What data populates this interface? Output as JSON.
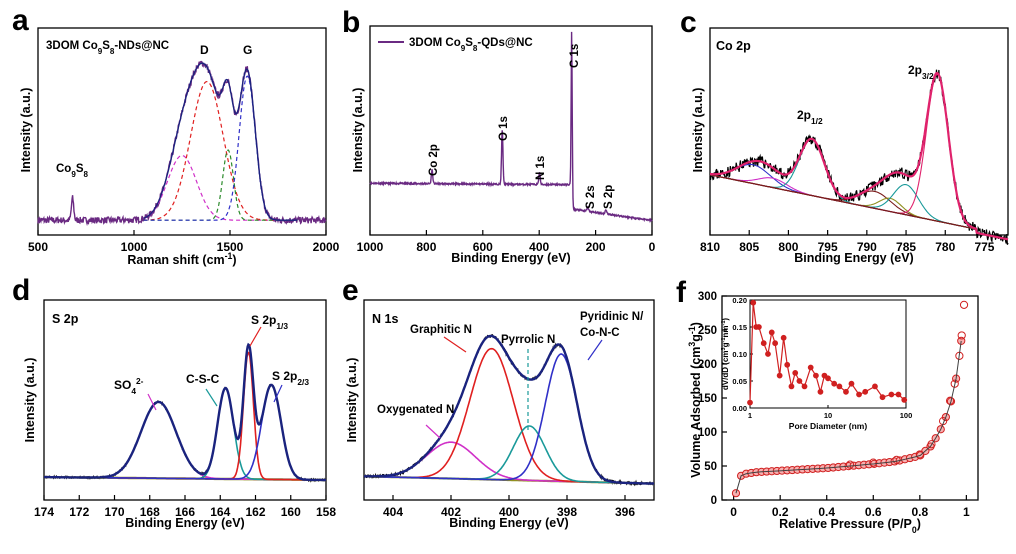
{
  "panels": {
    "a": {
      "letter": "a",
      "legend": "3DOM Co9S8-NDs@NC"
    },
    "b": {
      "letter": "b",
      "legend": "3DOM Co9S8-QDs@NC"
    },
    "c": {
      "letter": "c"
    },
    "d": {
      "letter": "d"
    },
    "e": {
      "letter": "e"
    },
    "f": {
      "letter": "f"
    }
  },
  "colors": {
    "data": "#6a2a82",
    "fit": "#1a237e",
    "envelope": "#e0226c",
    "red": "#e02020",
    "magenta": "#d030c8",
    "teal": "#1a9a9a",
    "green": "#2a8a2a",
    "blue": "#3030c8",
    "baseline": "#8a8a10",
    "brown": "#7a1a1a",
    "olive": "#909020",
    "iso": "#d02020"
  },
  "chart_data": [
    {
      "id": "a",
      "type": "line",
      "title": "3DOM Co9S8-NDs@NC",
      "xlabel": "Raman shift (cm-1)",
      "ylabel": "Intensity (a.u.)",
      "xlim": [
        500,
        2000
      ],
      "xticks": [
        500,
        1000,
        1500,
        2000
      ],
      "annotations": [
        "Co9S8",
        "D",
        "G"
      ],
      "series": [
        {
          "name": "3DOM Co9S8-NDs@NC",
          "x": [
            1000,
            1100,
            1200,
            1300,
            1350,
            1380,
            1400,
            1450,
            1500,
            1550,
            1580,
            1600,
            1650,
            1700,
            1800,
            1900,
            2000
          ],
          "y": [
            0.05,
            0.12,
            0.35,
            0.72,
            0.88,
            0.95,
            0.9,
            0.72,
            0.68,
            0.88,
            0.98,
            0.95,
            0.6,
            0.25,
            0.06,
            0.03,
            0.02
          ]
        }
      ]
    },
    {
      "id": "b",
      "type": "line",
      "title": "3DOM Co9S8-QDs@NC",
      "xlabel": "Binding Energy (eV)",
      "ylabel": "Intensity (a.u.)",
      "xlim": [
        1000,
        0
      ],
      "xticks": [
        1000,
        800,
        600,
        400,
        200,
        0
      ],
      "annotations": [
        "Co 2p",
        "O 1s",
        "N 1s",
        "C 1s",
        "S 2s",
        "S 2p"
      ],
      "series": [
        {
          "name": "3DOM Co9S8-QDs@NC",
          "peaks": [
            {
              "x": 780,
              "label": "Co 2p"
            },
            {
              "x": 531,
              "label": "O 1s"
            },
            {
              "x": 399,
              "label": "N 1s"
            },
            {
              "x": 284.6,
              "label": "C 1s"
            },
            {
              "x": 228,
              "label": "S 2s"
            },
            {
              "x": 163,
              "label": "S 2p"
            }
          ]
        }
      ]
    },
    {
      "id": "c",
      "type": "line",
      "title": "Co 2p",
      "xlabel": "Binding Energy (eV)",
      "ylabel": "Intensity (a.u.)",
      "xlim": [
        810,
        772
      ],
      "xticks": [
        810,
        805,
        800,
        795,
        790,
        785,
        780,
        775
      ],
      "annotations": [
        "2p1/2",
        "2p3/2"
      ],
      "series": [
        {
          "name": "2p3/2 main",
          "center": 781
        },
        {
          "name": "2p3/2 sat",
          "center": 785.5
        },
        {
          "name": "2p1/2 main",
          "center": 797
        },
        {
          "name": "satellites",
          "centers": [
            788,
            803
          ]
        }
      ]
    },
    {
      "id": "d",
      "type": "line",
      "title": "S 2p",
      "xlabel": "Binding Energy (eV)",
      "ylabel": "Intensity (a.u.)",
      "xlim": [
        174,
        158
      ],
      "xticks": [
        174,
        172,
        170,
        168,
        166,
        164,
        162,
        160,
        158
      ],
      "annotations": [
        "SO4 2-",
        "C-S-C",
        "S 2p1/3",
        "S 2p2/3"
      ],
      "series": [
        {
          "name": "SO4 2-",
          "center": 167.5
        },
        {
          "name": "C-S-C",
          "center": 163.7
        },
        {
          "name": "S 2p1/3",
          "center": 162.4
        },
        {
          "name": "S 2p2/3",
          "center": 161.1
        }
      ]
    },
    {
      "id": "e",
      "type": "line",
      "title": "N 1s",
      "xlabel": "Binding Energy (eV)",
      "ylabel": "Intensity (a.u.)",
      "xlim": [
        405,
        395
      ],
      "xticks": [
        404,
        402,
        400,
        398,
        396
      ],
      "annotations": [
        "Oxygenated N",
        "Graphitic N",
        "Pyrrolic N",
        "Pyridinic N/ Co-N-C"
      ],
      "series": [
        {
          "name": "Oxygenated N",
          "center": 402.0
        },
        {
          "name": "Graphitic N",
          "center": 400.6
        },
        {
          "name": "Pyrrolic N",
          "center": 399.3
        },
        {
          "name": "Pyridinic N/ Co-N-C",
          "center": 398.2
        }
      ]
    },
    {
      "id": "f",
      "type": "scatter",
      "xlabel": "Relative Pressure (P/P0)",
      "ylabel": "Volume Adsorbed (cm3g-1)",
      "xlim": [
        -0.05,
        1.05
      ],
      "xticks": [
        0.0,
        0.2,
        0.4,
        0.6,
        0.8,
        1.0
      ],
      "ylim": [
        0,
        300
      ],
      "yticks": [
        0,
        50,
        100,
        150,
        200,
        250,
        300
      ],
      "series": [
        {
          "name": "isotherm",
          "x": [
            0.01,
            0.02,
            0.04,
            0.06,
            0.08,
            0.1,
            0.15,
            0.2,
            0.25,
            0.3,
            0.4,
            0.5,
            0.6,
            0.7,
            0.8,
            0.85,
            0.9,
            0.93,
            0.95,
            0.97,
            0.98,
            0.99
          ],
          "y": [
            10,
            32,
            38,
            39,
            40,
            41,
            42,
            43,
            44,
            45,
            47,
            50,
            53,
            57,
            65,
            80,
            110,
            140,
            165,
            210,
            240,
            285
          ]
        }
      ],
      "inset": {
        "xlabel": "Pore Diameter (nm)",
        "ylabel": "dV/dD (cm3g-1nm-1)",
        "xscale": "log",
        "xlim": [
          1,
          100
        ],
        "xticks": [
          1,
          10,
          100
        ],
        "ylim": [
          0,
          0.2
        ],
        "yticks": [
          0.0,
          0.05,
          0.1,
          0.15,
          0.2
        ],
        "x": [
          1.0,
          1.1,
          1.2,
          1.3,
          1.5,
          1.7,
          1.9,
          2.1,
          2.4,
          2.7,
          3.0,
          3.4,
          3.8,
          4.3,
          5,
          6,
          7,
          8,
          9,
          10,
          12,
          14,
          17,
          20,
          25,
          30,
          40,
          50,
          65,
          80,
          95
        ],
        "y": [
          0.01,
          0.195,
          0.15,
          0.15,
          0.12,
          0.1,
          0.14,
          0.12,
          0.06,
          0.13,
          0.08,
          0.04,
          0.065,
          0.05,
          0.04,
          0.075,
          0.06,
          0.03,
          0.06,
          0.055,
          0.045,
          0.04,
          0.03,
          0.045,
          0.025,
          0.03,
          0.04,
          0.02,
          0.025,
          0.025,
          0.015
        ]
      }
    }
  ]
}
